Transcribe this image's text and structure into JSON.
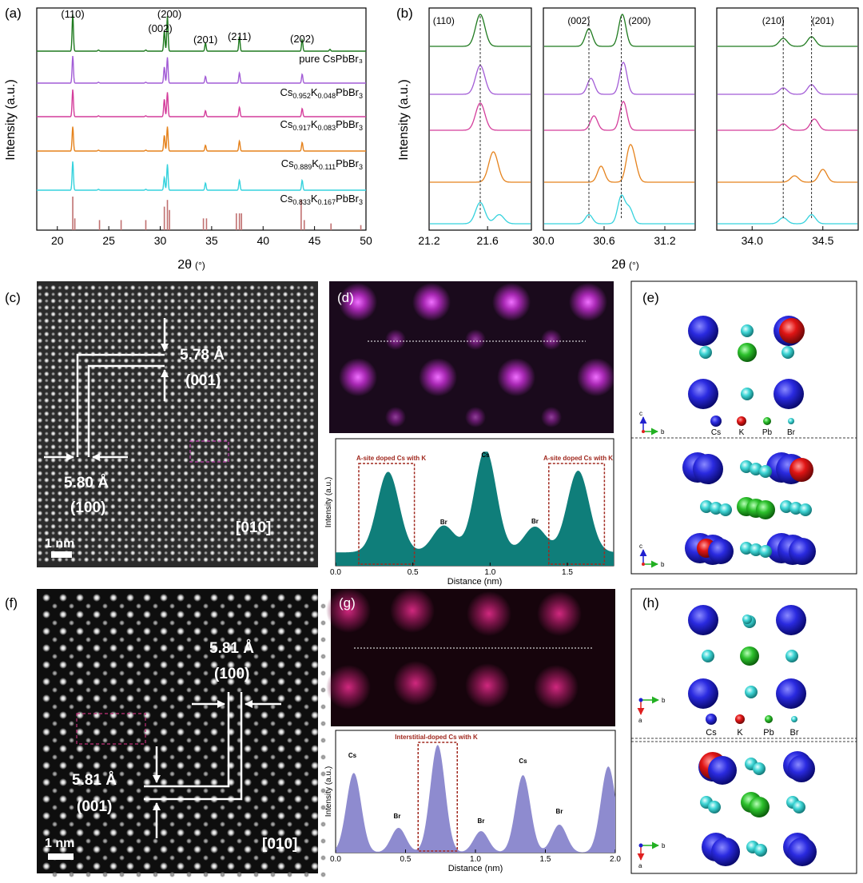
{
  "panels": {
    "a": "(a)",
    "b": "(b)",
    "c": "(c)",
    "d": "(d)",
    "e": "(e)",
    "f": "(f)",
    "g": "(g)",
    "h": "(h)"
  },
  "colors": {
    "pure": "#1f7a1f",
    "k048": "#a25cd6",
    "k083": "#d43d9b",
    "k111": "#e5821c",
    "k167": "#35d2dd",
    "reference": "#c07070",
    "teal_fill": "#0f7e7a",
    "lavender_fill": "#8e8bcf",
    "box": "#a0281e",
    "cs": "#1e1ec8",
    "k": "#e01414",
    "pb": "#2cc02c",
    "br": "#3fd6d6",
    "magenta": "#c83cd0",
    "pink": "#c0227a"
  },
  "chart_data": [
    {
      "id": "a",
      "type": "line",
      "ylabel": "Intensity (a.u.)",
      "xlabel": "2θ",
      "xunit": "(°)",
      "xlim": [
        18,
        50
      ],
      "xticks": [
        20,
        25,
        30,
        35,
        40,
        45,
        50
      ],
      "series": [
        {
          "key": "pure",
          "label": "pure CsPbBr₃",
          "color_key": "pure",
          "peaks": [
            [
              21.5,
              1.0
            ],
            [
              30.4,
              0.55
            ],
            [
              30.7,
              0.95
            ],
            [
              34.4,
              0.22
            ],
            [
              37.7,
              0.4
            ],
            [
              43.8,
              0.32
            ],
            [
              46.5,
              0.05
            ]
          ]
        },
        {
          "key": "k048",
          "label_parts": [
            "Cs",
            "0.952",
            "K",
            "0.048",
            "PbBr",
            "3"
          ],
          "color_key": "k048",
          "peaks": [
            [
              21.5,
              1.0
            ],
            [
              30.4,
              0.6
            ],
            [
              30.7,
              0.95
            ],
            [
              34.4,
              0.25
            ],
            [
              37.7,
              0.38
            ],
            [
              43.8,
              0.33
            ]
          ]
        },
        {
          "key": "k083",
          "label_parts": [
            "Cs",
            "0.917",
            "K",
            "0.083",
            "PbBr",
            "3"
          ],
          "color_key": "k083",
          "peaks": [
            [
              21.5,
              1.0
            ],
            [
              30.4,
              0.65
            ],
            [
              30.7,
              0.9
            ],
            [
              34.4,
              0.22
            ],
            [
              37.7,
              0.35
            ],
            [
              43.8,
              0.3
            ]
          ]
        },
        {
          "key": "k111",
          "label_parts": [
            "Cs",
            "0.889",
            "K",
            "0.111",
            "PbBr",
            "3"
          ],
          "color_key": "k111",
          "peaks": [
            [
              21.5,
              0.85
            ],
            [
              30.4,
              0.55
            ],
            [
              30.7,
              0.85
            ],
            [
              34.4,
              0.2
            ],
            [
              37.7,
              0.35
            ],
            [
              43.8,
              0.3
            ]
          ]
        },
        {
          "key": "k167",
          "label_parts": [
            "Cs",
            "0.833",
            "K",
            "0.167",
            "PbBr",
            "3"
          ],
          "color_key": "k167",
          "peaks": [
            [
              21.5,
              1.0
            ],
            [
              30.4,
              0.45
            ],
            [
              30.7,
              0.9
            ],
            [
              34.4,
              0.25
            ],
            [
              37.7,
              0.35
            ],
            [
              43.8,
              0.35
            ]
          ]
        }
      ],
      "annotations": [
        {
          "text": "(110)",
          "x": 21.5
        },
        {
          "text": "(002)",
          "x": 30.0
        },
        {
          "text": "(200)",
          "x": 30.9
        },
        {
          "text": "(201)",
          "x": 34.4
        },
        {
          "text": "(211)",
          "x": 37.7
        },
        {
          "text": "(202)",
          "x": 43.8
        }
      ],
      "reference_sticks": [
        [
          21.5,
          1.0
        ],
        [
          21.7,
          0.35
        ],
        [
          24.1,
          0.3
        ],
        [
          26.2,
          0.3
        ],
        [
          28.6,
          0.3
        ],
        [
          30.4,
          0.7
        ],
        [
          30.7,
          0.9
        ],
        [
          30.9,
          0.6
        ],
        [
          34.2,
          0.35
        ],
        [
          34.5,
          0.35
        ],
        [
          37.4,
          0.5
        ],
        [
          37.7,
          0.5
        ],
        [
          37.9,
          0.5
        ],
        [
          43.7,
          0.9
        ],
        [
          44.0,
          0.3
        ],
        [
          46.6,
          0.2
        ],
        [
          49.5,
          0.15
        ]
      ]
    },
    {
      "id": "b",
      "type": "line",
      "ylabel": "Intensity (a.u.)",
      "xlabel": "2θ",
      "xunit": "(°)",
      "subpanels": [
        {
          "xlim": [
            21.2,
            21.9
          ],
          "xticks": [
            21.2,
            21.6
          ],
          "tick_labels": [
            "21.2",
            "21.6"
          ],
          "labels": [
            {
              "text": "(110)",
              "x": 21.3
            }
          ],
          "dashed": [
            21.55
          ]
        },
        {
          "xlim": [
            30.0,
            31.5
          ],
          "xticks": [
            30.0,
            30.6,
            31.2
          ],
          "tick_labels": [
            "30.0",
            "30.6",
            "31.2"
          ],
          "labels": [
            {
              "text": "(002)",
              "x": 30.35
            },
            {
              "text": "(200)",
              "x": 30.95
            }
          ],
          "dashed": [
            30.45,
            30.77
          ]
        },
        {
          "xlim": [
            33.75,
            34.75
          ],
          "xticks": [
            34.0,
            34.5
          ],
          "tick_labels": [
            "34.0",
            "34.5"
          ],
          "labels": [
            {
              "text": "(210)",
              "x": 34.15
            },
            {
              "text": "(201)",
              "x": 34.5
            }
          ],
          "dashed": [
            34.22,
            34.42
          ]
        }
      ]
    },
    {
      "id": "d",
      "type": "area",
      "xlabel": "Distance (nm)",
      "ylabel": "Intensity (a.u.)",
      "xlim": [
        0,
        1.8
      ],
      "xticks": [
        0,
        0.5,
        1,
        1.5
      ],
      "tick_labels": [
        "0.0",
        "0.5",
        "1.0",
        "1.5"
      ],
      "annotations": [
        {
          "text": "A-site doped Cs with K",
          "x": 0.36
        },
        {
          "text": "A-site doped Cs with K",
          "x": 1.57
        },
        {
          "text": "Cs",
          "x": 0.97
        },
        {
          "text": "Br",
          "x": 0.7
        },
        {
          "text": "Br",
          "x": 1.29
        }
      ],
      "peaks": [
        [
          0.34,
          0.72
        ],
        [
          0.7,
          0.24
        ],
        [
          0.97,
          0.92
        ],
        [
          1.29,
          0.23
        ],
        [
          1.57,
          0.73
        ]
      ],
      "boxes": [
        [
          0.15,
          0.51
        ],
        [
          1.38,
          1.74
        ]
      ]
    },
    {
      "id": "g",
      "type": "area",
      "xlabel": "Distance (nm)",
      "ylabel": "Intensity (a.u.)",
      "xlim": [
        0,
        2.0
      ],
      "xticks": [
        0,
        0.5,
        1,
        1.5,
        2
      ],
      "tick_labels": [
        "0.0",
        "0.5",
        "1.0",
        "1.5",
        "2.0"
      ],
      "annotations": [
        {
          "text": "Interstitial-doped Cs with K",
          "x": 0.72
        },
        {
          "text": "Cs",
          "x": 0.12
        },
        {
          "text": "Br",
          "x": 0.44
        },
        {
          "text": "Br",
          "x": 1.04
        },
        {
          "text": "Cs",
          "x": 1.34
        },
        {
          "text": "Br",
          "x": 1.6
        }
      ],
      "peaks": [
        [
          0.13,
          0.74
        ],
        [
          0.45,
          0.23
        ],
        [
          0.73,
          1.0
        ],
        [
          1.04,
          0.2
        ],
        [
          1.34,
          0.72
        ],
        [
          1.6,
          0.26
        ],
        [
          1.95,
          0.8
        ]
      ],
      "boxes": [
        [
          0.59,
          0.87
        ]
      ]
    }
  ],
  "micrographs": {
    "c": {
      "d1": "5.78 Å",
      "p1": "(001)",
      "d2": "5.80 Å",
      "p2": "(100)",
      "zone": "[010]",
      "scale": "1 nm"
    },
    "f": {
      "d1": "5.81 Å",
      "p1": "(100)",
      "d2": "5.81 Å",
      "p2": "(001)",
      "zone": "[010]",
      "scale": "1 nm"
    }
  },
  "structure_e": {
    "legend": [
      "Cs",
      "K",
      "Pb",
      "Br"
    ],
    "axes_top": [
      "c",
      "b"
    ],
    "axes_bottom": [
      "c",
      "b"
    ]
  },
  "structure_h": {
    "legend": [
      "Cs",
      "K",
      "Pb",
      "Br"
    ],
    "axes_top": [
      "b",
      "a"
    ],
    "axes_bottom": [
      "b",
      "a"
    ]
  }
}
